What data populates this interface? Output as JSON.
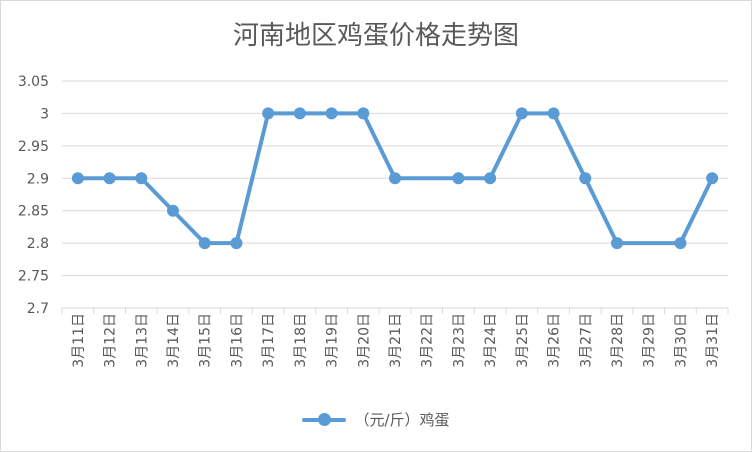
{
  "chart_data": {
    "type": "line",
    "title": "河南地区鸡蛋价格走势图",
    "categories": [
      "3月11日",
      "3月12日",
      "3月13日",
      "3月14日",
      "3月15日",
      "3月16日",
      "3月17日",
      "3月18日",
      "3月19日",
      "3月20日",
      "3月21日",
      "3月22日",
      "3月23日",
      "3月24日",
      "3月25日",
      "3月26日",
      "3月27日",
      "3月28日",
      "3月29日",
      "3月30日",
      "3月31日"
    ],
    "series": [
      {
        "name": "（元/斤）鸡蛋",
        "color": "#5b9bd5",
        "points": [
          [
            0,
            2.9
          ],
          [
            1,
            2.9
          ],
          [
            2,
            2.9
          ],
          [
            3,
            2.85
          ],
          [
            4,
            2.8
          ],
          [
            5,
            2.8
          ],
          [
            6,
            3.0
          ],
          [
            7,
            3.0
          ],
          [
            8,
            3.0
          ],
          [
            9,
            3.0
          ],
          [
            10,
            2.9
          ],
          [
            12,
            2.9
          ],
          [
            13,
            2.9
          ],
          [
            14,
            3.0
          ],
          [
            15,
            3.0
          ],
          [
            16,
            2.9
          ],
          [
            17,
            2.8
          ],
          [
            19,
            2.8
          ],
          [
            20,
            2.9
          ]
        ]
      }
    ],
    "ylim": [
      2.7,
      3.05
    ],
    "y_ticks": [
      "2.7",
      "2.75",
      "2.8",
      "2.85",
      "2.9",
      "2.95",
      "3",
      "3.05"
    ],
    "grid": true,
    "legend_position": "bottom"
  }
}
